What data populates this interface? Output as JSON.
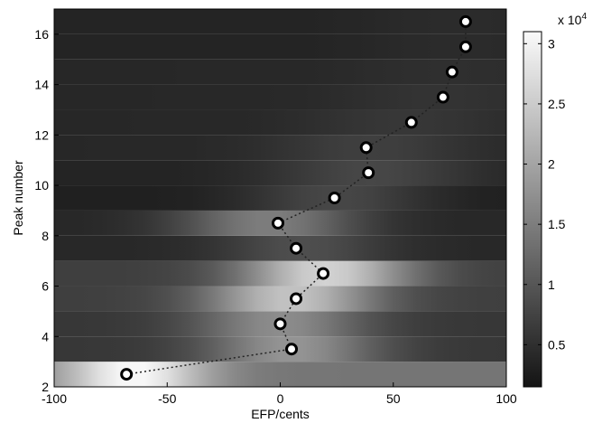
{
  "chart_data": {
    "type": "heatmap",
    "xlabel": "EFP/cents",
    "ylabel": "Peak number",
    "xlim": [
      -100,
      100
    ],
    "ylim": [
      2,
      17
    ],
    "x_ticks": [
      "-100",
      "-50",
      "0",
      "50",
      "100"
    ],
    "y_ticks": [
      "2",
      "4",
      "6",
      "8",
      "10",
      "12",
      "14",
      "16"
    ],
    "colorbar": {
      "range": [
        1500,
        31000
      ],
      "ticks": [
        "0.5",
        "1",
        "1.5",
        "2",
        "2.5",
        "3"
      ],
      "exponent_label": "x 10",
      "exponent_power": "4",
      "colormap": "gray"
    },
    "rows": [
      {
        "peak": 2.5,
        "center": -65,
        "peak_value": 31000,
        "base": 14000,
        "width": 32
      },
      {
        "peak": 3.5,
        "center": 5,
        "peak_value": 18000,
        "base": 6000,
        "width": 38
      },
      {
        "peak": 4.5,
        "center": 0,
        "peak_value": 17000,
        "base": 6000,
        "width": 38
      },
      {
        "peak": 5.5,
        "center": 5,
        "peak_value": 24000,
        "base": 7000,
        "width": 38
      },
      {
        "peak": 6.5,
        "center": 20,
        "peak_value": 26000,
        "base": 7000,
        "width": 38
      },
      {
        "peak": 7.5,
        "center": 10,
        "peak_value": 9000,
        "base": 4000,
        "width": 38
      },
      {
        "peak": 8.5,
        "center": -5,
        "peak_value": 15000,
        "base": 4000,
        "width": 40
      },
      {
        "peak": 9.5,
        "center": 25,
        "peak_value": 8000,
        "base": 3000,
        "width": 40
      },
      {
        "peak": 10.5,
        "center": 40,
        "peak_value": 8000,
        "base": 3500,
        "width": 45
      },
      {
        "peak": 11.5,
        "center": 40,
        "peak_value": 7000,
        "base": 4000,
        "width": 45
      },
      {
        "peak": 12.5,
        "center": 55,
        "peak_value": 6000,
        "base": 4000,
        "width": 45
      },
      {
        "peak": 13.5,
        "center": 70,
        "peak_value": 5500,
        "base": 4000,
        "width": 45
      },
      {
        "peak": 14.5,
        "center": 75,
        "peak_value": 5000,
        "base": 4000,
        "width": 45
      },
      {
        "peak": 15.5,
        "center": 80,
        "peak_value": 4500,
        "base": 3500,
        "width": 45
      },
      {
        "peak": 16.5,
        "center": 80,
        "peak_value": 4500,
        "base": 3500,
        "width": 45
      }
    ],
    "series": [
      {
        "x": [
          -68,
          5,
          0,
          7,
          19,
          7,
          -1,
          24,
          39,
          38,
          58,
          72,
          76,
          82,
          82
        ],
        "y": [
          2.5,
          3.5,
          4.5,
          5.5,
          6.5,
          7.5,
          8.5,
          9.5,
          10.5,
          11.5,
          12.5,
          13.5,
          14.5,
          15.5,
          16.5
        ]
      }
    ]
  }
}
